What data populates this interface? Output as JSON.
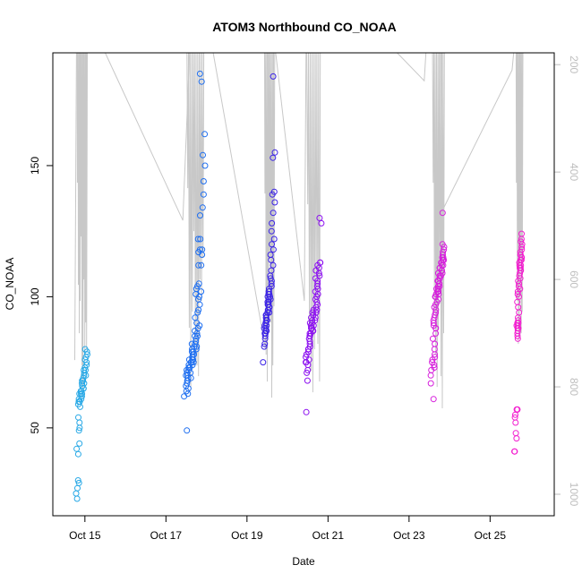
{
  "chart_data": {
    "type": "scatter",
    "title": "ATOM3 Northbound CO_NOAA",
    "xlabel": "Date",
    "ylabel": "CO_NOAA",
    "xlim": [
      "2017-10-14T05:00",
      "2017-10-26T14:00"
    ],
    "ylim": [
      16.5,
      193
    ],
    "y2lim": [
      1040,
      178
    ],
    "x_ticks": [
      {
        "date": "2017-10-15",
        "label": "Oct 15"
      },
      {
        "date": "2017-10-17",
        "label": "Oct 17"
      },
      {
        "date": "2017-10-19",
        "label": "Oct 19"
      },
      {
        "date": "2017-10-21",
        "label": "Oct 21"
      },
      {
        "date": "2017-10-23",
        "label": "Oct 23"
      },
      {
        "date": "2017-10-25",
        "label": "Oct 25"
      }
    ],
    "y_ticks": [
      50,
      100,
      150
    ],
    "y2_ticks": [
      200,
      400,
      600,
      800,
      1000
    ],
    "grid": false,
    "legend": "none",
    "colors": {
      "pressure_line": "#c8c8c8",
      "right_axis": "#bebebe",
      "flight_colors": [
        "#29a9e6",
        "#1f6ff0",
        "#3b23e6",
        "#8c10f0",
        "#d61fdc",
        "#f21ecf"
      ]
    },
    "pressure_profile": [
      {
        "t": "2017-10-14T18:00",
        "p": 750
      },
      {
        "t": "2017-10-14T19:00",
        "p": 178
      },
      {
        "t": "2017-10-15T12:00",
        "p": 178
      },
      {
        "t": "2017-10-17T10:00",
        "p": 490
      },
      {
        "t": "2017-10-17T14:00",
        "p": 178
      },
      {
        "t": "2017-10-18T04:00",
        "p": 178
      },
      {
        "t": "2017-10-19T11:00",
        "p": 730
      },
      {
        "t": "2017-10-19T12:00",
        "p": 178
      },
      {
        "t": "2017-10-19T17:00",
        "p": 178
      },
      {
        "t": "2017-10-20T10:00",
        "p": 640
      },
      {
        "t": "2017-10-20T11:00",
        "p": 178
      },
      {
        "t": "2017-10-22T17:00",
        "p": 178
      },
      {
        "t": "2017-10-23T09:00",
        "p": 230
      },
      {
        "t": "2017-10-23T10:00",
        "p": 178
      },
      {
        "t": "2017-10-23T19:00",
        "p": 178
      },
      {
        "t": "2017-10-23T20:00",
        "p": 470
      },
      {
        "t": "2017-10-25T13:00",
        "p": 210
      },
      {
        "t": "2017-10-25T14:00",
        "p": 178
      }
    ],
    "profiles": [
      {
        "center": "2017-10-14T22:00",
        "spread_h": 6,
        "pressures": [
          178,
          420,
          610,
          700,
          640,
          520,
          760,
          810,
          600,
          740,
          680,
          730
        ],
        "y": [
          23,
          25,
          27,
          29,
          30,
          40,
          42,
          44,
          49,
          50,
          52,
          54,
          58,
          59,
          60,
          60,
          61,
          61,
          62,
          62,
          63,
          63,
          63,
          64,
          64,
          64,
          65,
          65,
          66,
          66,
          67,
          67,
          68,
          68,
          69,
          70,
          70,
          71,
          72,
          72,
          73,
          74,
          75,
          76,
          77,
          78,
          79,
          80
        ]
      },
      {
        "center": "2017-10-17T17:00",
        "spread_h": 10,
        "pressures": [
          178,
          430,
          690,
          800,
          660,
          510,
          720,
          760,
          780,
          600,
          640,
          560
        ],
        "y": [
          49,
          62,
          63,
          64,
          65,
          66,
          67,
          68,
          68,
          69,
          69,
          70,
          70,
          71,
          71,
          72,
          72,
          73,
          73,
          74,
          74,
          75,
          75,
          75,
          76,
          76,
          76,
          77,
          77,
          78,
          78,
          79,
          79,
          80,
          80,
          81,
          81,
          82,
          82,
          83,
          84,
          85,
          85,
          86,
          87,
          88,
          89,
          90,
          92,
          94,
          95,
          97,
          99,
          100,
          101,
          102,
          103,
          104,
          105,
          112,
          112,
          116,
          117,
          118,
          118,
          122,
          122,
          131,
          134,
          139,
          144,
          150,
          154,
          162,
          182,
          185
        ]
      },
      {
        "center": "2017-10-19T13:00",
        "spread_h": 6,
        "pressures": [
          178,
          440,
          740,
          790,
          700,
          560,
          680,
          820,
          760,
          650
        ],
        "y": [
          75,
          81,
          82,
          84,
          85,
          86,
          86,
          87,
          87,
          88,
          88,
          89,
          89,
          90,
          90,
          91,
          91,
          92,
          92,
          93,
          93,
          94,
          94,
          95,
          95,
          96,
          96,
          97,
          97,
          98,
          98,
          99,
          99,
          100,
          100,
          101,
          101,
          102,
          102,
          103,
          104,
          105,
          106,
          107,
          108,
          110,
          112,
          114,
          116,
          118,
          120,
          122,
          125,
          128,
          132,
          136,
          139,
          140,
          153,
          155,
          184
        ]
      },
      {
        "center": "2017-10-20T15:00",
        "spread_h": 8,
        "pressures": [
          178,
          460,
          690,
          770,
          810,
          730,
          640,
          720,
          790
        ],
        "y": [
          56,
          68,
          71,
          72,
          74,
          75,
          75,
          76,
          77,
          78,
          79,
          80,
          80,
          81,
          82,
          83,
          84,
          85,
          85,
          86,
          86,
          87,
          87,
          88,
          88,
          89,
          89,
          90,
          90,
          91,
          91,
          92,
          92,
          93,
          93,
          94,
          94,
          95,
          95,
          96,
          97,
          98,
          99,
          100,
          101,
          102,
          103,
          104,
          105,
          106,
          107,
          108,
          109,
          110,
          111,
          112,
          113,
          113,
          128,
          130
        ]
      },
      {
        "center": "2017-10-23T17:00",
        "spread_h": 7,
        "pressures": [
          178,
          420,
          660,
          740,
          800,
          690,
          620,
          780,
          840,
          700
        ],
        "y": [
          61,
          67,
          70,
          72,
          73,
          74,
          75,
          76,
          77,
          78,
          80,
          82,
          84,
          86,
          88,
          88,
          89,
          90,
          91,
          92,
          93,
          94,
          95,
          96,
          97,
          98,
          99,
          100,
          100,
          101,
          101,
          102,
          102,
          103,
          103,
          104,
          104,
          105,
          105,
          106,
          106,
          107,
          107,
          108,
          108,
          109,
          109,
          110,
          110,
          111,
          111,
          112,
          112,
          113,
          113,
          114,
          114,
          115,
          115,
          116,
          117,
          118,
          119,
          120,
          132
        ]
      },
      {
        "center": "2017-10-25T17:00",
        "spread_h": 4,
        "pressures": [
          178,
          420,
          640,
          720,
          680,
          560,
          700,
          660
        ],
        "y": [
          41,
          41,
          46,
          48,
          52,
          54,
          55,
          57,
          57,
          57,
          84,
          85,
          86,
          87,
          88,
          88,
          89,
          89,
          90,
          90,
          91,
          92,
          94,
          96,
          98,
          100,
          101,
          102,
          103,
          104,
          105,
          106,
          107,
          108,
          109,
          110,
          110,
          111,
          111,
          112,
          112,
          113,
          113,
          114,
          114,
          115,
          115,
          116,
          116,
          117,
          118,
          119,
          120,
          121,
          122,
          124
        ]
      }
    ]
  }
}
